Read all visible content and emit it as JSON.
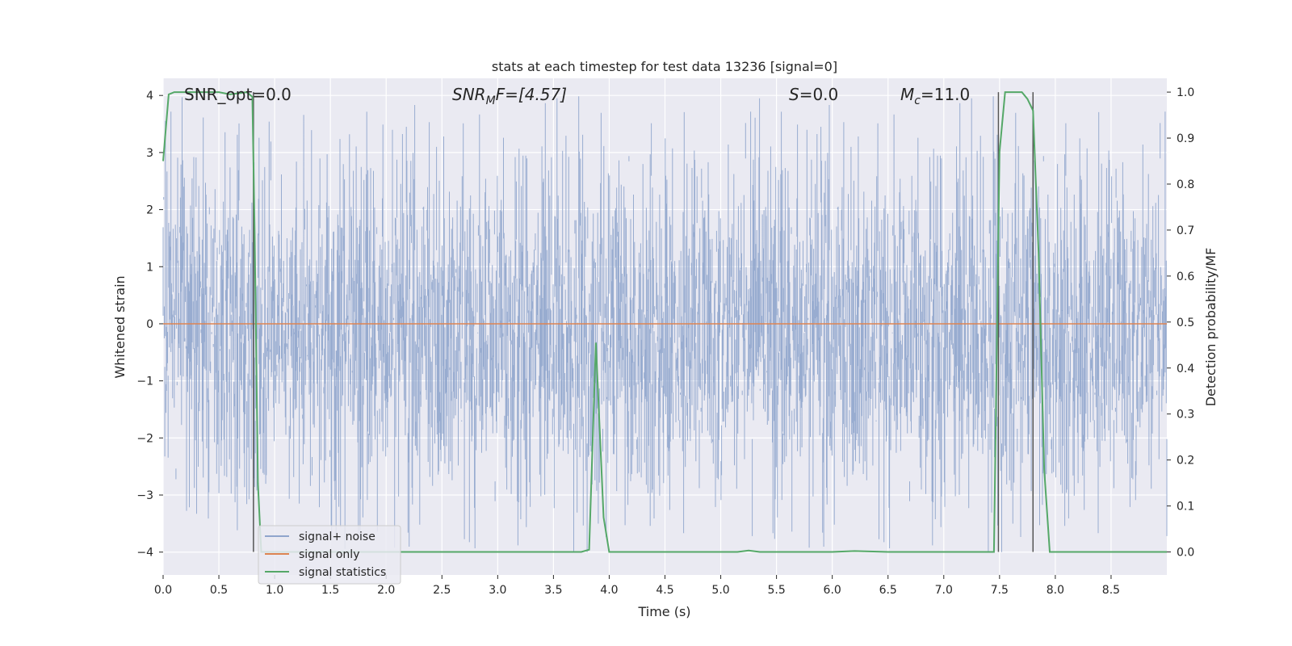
{
  "chart_data": {
    "type": "line",
    "title": "stats at each timestep for test data 13236 [signal=0]",
    "xlabel": "Time (s)",
    "ylabel_left": "Whitened strain",
    "ylabel_right": "Detection probability/MF",
    "xlim": [
      0.0,
      9.0
    ],
    "ylim_left": [
      -4.4,
      4.3
    ],
    "ylim_right": [
      -0.05,
      1.03
    ],
    "x_ticks": [
      "0.0",
      "0.5",
      "1.0",
      "1.5",
      "2.0",
      "2.5",
      "3.0",
      "3.5",
      "4.0",
      "4.5",
      "5.0",
      "5.5",
      "6.0",
      "6.5",
      "7.0",
      "7.5",
      "8.0",
      "8.5"
    ],
    "y_left_ticks": [
      "4",
      "3",
      "2",
      "1",
      "0",
      "−1",
      "−2",
      "−3",
      "−4"
    ],
    "y_right_ticks": [
      "1.0",
      "0.9",
      "0.8",
      "0.7",
      "0.6",
      "0.5",
      "0.4",
      "0.3",
      "0.2",
      "0.1",
      "0.0"
    ],
    "grid": true,
    "annotations": {
      "snr_opt": "SNR_opt=0.0",
      "snr_mf_sym": "SNR",
      "snr_mf_sub": "M",
      "snr_mf_rest": "F=[4.57]",
      "s_sym": "S",
      "s_rest": "=0.0",
      "mc_sym": "M",
      "mc_sub": "c",
      "mc_rest": "=11.0"
    },
    "legend": {
      "location": "lower-left",
      "entries": [
        {
          "label": "signal+ noise",
          "color": "#8fa5cc"
        },
        {
          "label": "signal only",
          "color": "#dd8452"
        },
        {
          "label": "signal statistics",
          "color": "#55a868"
        }
      ]
    },
    "series": [
      {
        "name": "signal+ noise",
        "axis": "left",
        "color": "#8fa5cc",
        "kind": "noise",
        "x_range": [
          0.0,
          9.0
        ],
        "typical_range": [
          -1.6,
          1.5
        ],
        "peak_range": [
          -4.0,
          4.0
        ]
      },
      {
        "name": "signal only",
        "axis": "left",
        "color": "#dd8452",
        "x": [
          0.0,
          9.0
        ],
        "y": [
          0.0,
          0.0
        ]
      },
      {
        "name": "signal statistics",
        "axis": "right",
        "color": "#55a868",
        "x": [
          0.0,
          0.05,
          0.1,
          0.2,
          0.5,
          0.6,
          0.75,
          0.8,
          0.82,
          0.85,
          0.88,
          0.95,
          1.5,
          2.0,
          2.5,
          3.0,
          3.5,
          3.75,
          3.82,
          3.88,
          3.95,
          4.0,
          4.5,
          5.0,
          5.15,
          5.25,
          5.35,
          5.5,
          6.0,
          6.2,
          6.5,
          7.0,
          7.45,
          7.5,
          7.55,
          7.7,
          7.75,
          7.8,
          7.85,
          7.9,
          7.95,
          8.0,
          8.5,
          9.0
        ],
        "y": [
          0.85,
          0.995,
          1.0,
          1.0,
          1.0,
          0.995,
          1.0,
          0.99,
          0.7,
          0.15,
          0.0,
          0.0,
          0.0,
          0.0,
          0.0,
          0.0,
          0.0,
          0.0,
          0.005,
          0.455,
          0.075,
          0.0,
          0.0,
          0.0,
          0.0,
          0.003,
          0.0,
          0.0,
          0.0,
          0.002,
          0.0,
          0.0,
          0.0,
          0.87,
          1.0,
          1.0,
          0.985,
          0.96,
          0.65,
          0.18,
          0.0,
          0.0,
          0.0,
          0.0
        ]
      }
    ],
    "vertical_lines_x": [
      0.81,
      7.49,
      7.8
    ]
  }
}
